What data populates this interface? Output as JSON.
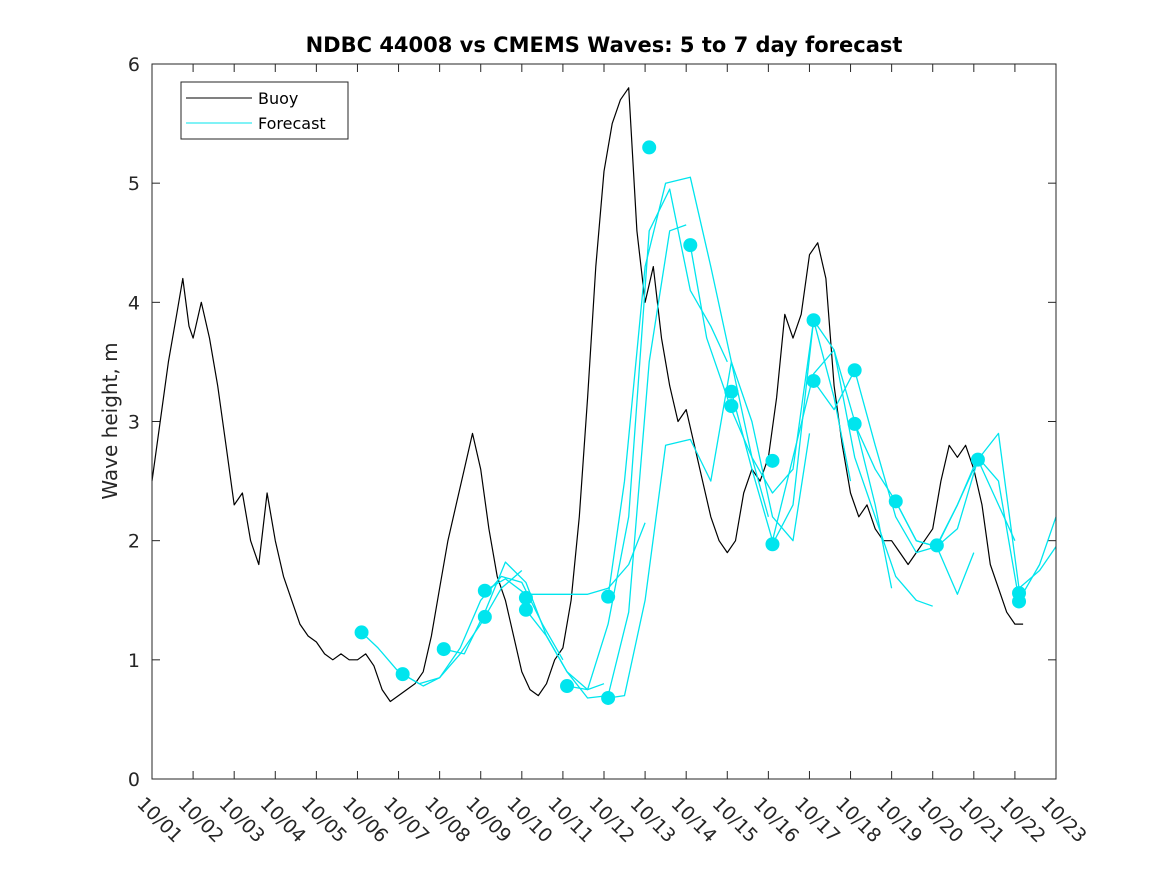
{
  "chart_data": {
    "type": "line",
    "title": "NDBC 44008 vs CMEMS Waves: 5 to 7 day forecast",
    "xlabel": "",
    "ylabel": "Wave height, m",
    "xlim": [
      0,
      22
    ],
    "ylim": [
      0,
      6
    ],
    "x_tick_labels": [
      "10/01",
      "10/02",
      "10/03",
      "10/04",
      "10/05",
      "10/06",
      "10/07",
      "10/08",
      "10/09",
      "10/10",
      "10/11",
      "10/12",
      "10/13",
      "10/14",
      "10/15",
      "10/16",
      "10/17",
      "10/18",
      "10/19",
      "10/20",
      "10/21",
      "10/22",
      "10/23"
    ],
    "y_ticks": [
      0,
      1,
      2,
      3,
      4,
      5,
      6
    ],
    "legend": {
      "position": "top-left",
      "entries": [
        "Buoy",
        "Forecast"
      ]
    },
    "colors": {
      "buoy": "#000000",
      "forecast": "#00e5ee",
      "axes": "#262626"
    },
    "series": [
      {
        "name": "Buoy",
        "x": [
          0,
          0.2,
          0.4,
          0.6,
          0.75,
          0.9,
          1.0,
          1.2,
          1.4,
          1.6,
          1.8,
          2.0,
          2.2,
          2.4,
          2.6,
          2.8,
          3.0,
          3.2,
          3.4,
          3.6,
          3.8,
          4.0,
          4.2,
          4.4,
          4.6,
          4.8,
          5.0,
          5.2,
          5.4,
          5.6,
          5.8,
          6.0,
          6.2,
          6.4,
          6.6,
          6.8,
          7.0,
          7.2,
          7.4,
          7.6,
          7.8,
          8.0,
          8.2,
          8.4,
          8.6,
          8.8,
          9.0,
          9.2,
          9.4,
          9.6,
          9.8,
          10.0,
          10.2,
          10.4,
          10.6,
          10.8,
          11.0,
          11.2,
          11.4,
          11.6,
          11.8,
          12.0,
          12.2,
          12.4,
          12.6,
          12.8,
          13.0,
          13.2,
          13.4,
          13.6,
          13.8,
          14.0,
          14.2,
          14.4,
          14.6,
          14.8,
          15.0,
          15.2,
          15.4,
          15.6,
          15.8,
          16.0,
          16.2,
          16.4,
          16.6,
          16.8,
          17.0,
          17.2,
          17.4,
          17.6,
          17.8,
          18.0,
          18.2,
          18.4,
          18.6,
          18.8,
          19.0,
          19.2,
          19.4,
          19.6,
          19.8,
          20.0,
          20.2,
          20.4,
          20.6,
          20.8,
          21.0,
          21.2
        ],
        "values": [
          2.5,
          3.0,
          3.5,
          3.9,
          4.2,
          3.8,
          3.7,
          4.0,
          3.7,
          3.3,
          2.8,
          2.3,
          2.4,
          2.0,
          1.8,
          2.4,
          2.0,
          1.7,
          1.5,
          1.3,
          1.2,
          1.15,
          1.05,
          1.0,
          1.05,
          1.0,
          1.0,
          1.05,
          0.95,
          0.75,
          0.65,
          0.7,
          0.75,
          0.8,
          0.9,
          1.2,
          1.6,
          2.0,
          2.3,
          2.6,
          2.9,
          2.6,
          2.1,
          1.7,
          1.5,
          1.2,
          0.9,
          0.75,
          0.7,
          0.8,
          1.0,
          1.1,
          1.5,
          2.2,
          3.2,
          4.3,
          5.1,
          5.5,
          5.7,
          5.8,
          4.6,
          4.0,
          4.3,
          3.7,
          3.3,
          3.0,
          3.1,
          2.8,
          2.5,
          2.2,
          2.0,
          1.9,
          2.0,
          2.4,
          2.6,
          2.5,
          2.7,
          3.2,
          3.9,
          3.7,
          3.9,
          4.4,
          4.5,
          4.2,
          3.3,
          2.8,
          2.4,
          2.2,
          2.3,
          2.1,
          2.0,
          2.0,
          1.9,
          1.8,
          1.9,
          2.0,
          2.1,
          2.5,
          2.8,
          2.7,
          2.8,
          2.6,
          2.3,
          1.8,
          1.6,
          1.4,
          1.3,
          1.3
        ]
      },
      {
        "name": "Forecast",
        "lines": [
          {
            "x": [
              5.1,
              5.5,
              6.0,
              6.5,
              7.0,
              7.5,
              8.0,
              8.5,
              9.0
            ],
            "values": [
              1.23,
              1.1,
              0.9,
              0.8,
              0.85,
              1.05,
              1.3,
              1.6,
              1.75
            ]
          },
          {
            "x": [
              6.1,
              6.6,
              7.0,
              7.5,
              8.0,
              8.5,
              9.0,
              9.5,
              10.0
            ],
            "values": [
              0.88,
              0.78,
              0.85,
              1.1,
              1.5,
              1.7,
              1.65,
              1.3,
              1.0
            ]
          },
          {
            "x": [
              7.1,
              7.6,
              8.1,
              8.6,
              9.1,
              9.6,
              10.1,
              10.6,
              11.0
            ],
            "values": [
              1.09,
              1.05,
              1.4,
              1.82,
              1.65,
              1.2,
              0.9,
              0.75,
              0.8
            ]
          },
          {
            "x": [
              8.1,
              8.6,
              9.1,
              9.6,
              10.1,
              10.6,
              11.1,
              11.6,
              12.0
            ],
            "values": [
              1.58,
              1.68,
              1.55,
              1.55,
              1.55,
              1.55,
              1.6,
              1.8,
              2.15
            ]
          },
          {
            "x": [
              9.1,
              9.6,
              10.1,
              10.6,
              11.1,
              11.6,
              12.1,
              12.6,
              13.0
            ],
            "values": [
              1.42,
              1.2,
              0.9,
              0.68,
              0.7,
              1.4,
              3.5,
              4.6,
              4.65
            ]
          },
          {
            "x": [
              10.1,
              10.6,
              11.1,
              11.6,
              12.1,
              12.6,
              13.1,
              13.6,
              14.0
            ],
            "values": [
              0.78,
              0.75,
              1.3,
              2.2,
              4.6,
              4.95,
              4.1,
              3.8,
              3.5
            ]
          },
          {
            "x": [
              11.1,
              11.5,
              12.0,
              12.5,
              13.1,
              13.6,
              14.1,
              14.6,
              15.0
            ],
            "values": [
              1.53,
              2.5,
              4.3,
              5.0,
              5.05,
              4.3,
              3.5,
              2.7,
              2.2
            ]
          },
          {
            "x": [
              11.1,
              11.5,
              12.0,
              12.5,
              13.1,
              13.6,
              14.1,
              14.6,
              15.1,
              15.6,
              16.0
            ],
            "values": [
              0.68,
              0.7,
              1.5,
              2.8,
              2.85,
              2.5,
              3.5,
              3.0,
              2.2,
              2.0,
              2.9
            ]
          },
          {
            "x": [
              13.1,
              13.5,
              14.1,
              14.6,
              15.1,
              15.6,
              16.1,
              16.6,
              17.0
            ],
            "values": [
              4.48,
              3.7,
              3.1,
              2.7,
              2.4,
              2.6,
              3.85,
              3.2,
              2.5
            ]
          },
          {
            "x": [
              14.1,
              14.6,
              15.1,
              15.6,
              16.1,
              16.6,
              17.1,
              17.6,
              18.0
            ],
            "values": [
              3.25,
              2.6,
              2.0,
              2.7,
              3.4,
              3.6,
              3.0,
              2.3,
              1.6
            ]
          },
          {
            "x": [
              15.1,
              15.6,
              16.1,
              16.6,
              17.1,
              17.6,
              18.1,
              18.6,
              19.0
            ],
            "values": [
              1.97,
              2.3,
              3.85,
              3.6,
              2.7,
              2.2,
              1.7,
              1.5,
              1.45
            ]
          },
          {
            "x": [
              16.1,
              16.6,
              17.1,
              17.6,
              18.1,
              18.6,
              19.1,
              19.6,
              20.0
            ],
            "values": [
              3.34,
              3.1,
              3.43,
              2.8,
              2.2,
              1.9,
              1.95,
              1.55,
              1.9
            ]
          },
          {
            "x": [
              17.1,
              17.6,
              18.1,
              18.6,
              19.1,
              19.6,
              20.1,
              20.6,
              21.0
            ],
            "values": [
              2.98,
              2.6,
              2.33,
              2.0,
              1.95,
              2.3,
              2.68,
              2.3,
              2.0
            ]
          },
          {
            "x": [
              18.1,
              18.6,
              19.1,
              19.6,
              20.1,
              20.6,
              21.1,
              21.6,
              22.0
            ],
            "values": [
              2.33,
              2.0,
              1.95,
              2.1,
              2.68,
              2.9,
              1.6,
              1.75,
              1.95
            ]
          },
          {
            "x": [
              19.1,
              19.6,
              20.1,
              20.6,
              21.1,
              21.6,
              22.0
            ],
            "values": [
              1.96,
              2.3,
              2.7,
              2.5,
              1.5,
              1.8,
              2.2
            ]
          }
        ],
        "markers": [
          {
            "x": 5.1,
            "value": 1.23
          },
          {
            "x": 6.1,
            "value": 0.88
          },
          {
            "x": 7.1,
            "value": 1.09
          },
          {
            "x": 8.1,
            "value": 1.58
          },
          {
            "x": 8.1,
            "value": 1.36
          },
          {
            "x": 9.1,
            "value": 1.52
          },
          {
            "x": 9.1,
            "value": 1.42
          },
          {
            "x": 10.1,
            "value": 0.78
          },
          {
            "x": 11.1,
            "value": 1.53
          },
          {
            "x": 11.1,
            "value": 0.68
          },
          {
            "x": 12.1,
            "value": 5.3
          },
          {
            "x": 13.1,
            "value": 4.48
          },
          {
            "x": 14.1,
            "value": 3.25
          },
          {
            "x": 14.1,
            "value": 3.13
          },
          {
            "x": 15.1,
            "value": 2.67
          },
          {
            "x": 15.1,
            "value": 1.97
          },
          {
            "x": 16.1,
            "value": 3.85
          },
          {
            "x": 16.1,
            "value": 3.34
          },
          {
            "x": 17.1,
            "value": 3.43
          },
          {
            "x": 17.1,
            "value": 2.98
          },
          {
            "x": 18.1,
            "value": 2.33
          },
          {
            "x": 19.1,
            "value": 1.96
          },
          {
            "x": 20.1,
            "value": 2.68
          },
          {
            "x": 21.1,
            "value": 1.56
          },
          {
            "x": 21.1,
            "value": 1.49
          }
        ]
      }
    ]
  }
}
